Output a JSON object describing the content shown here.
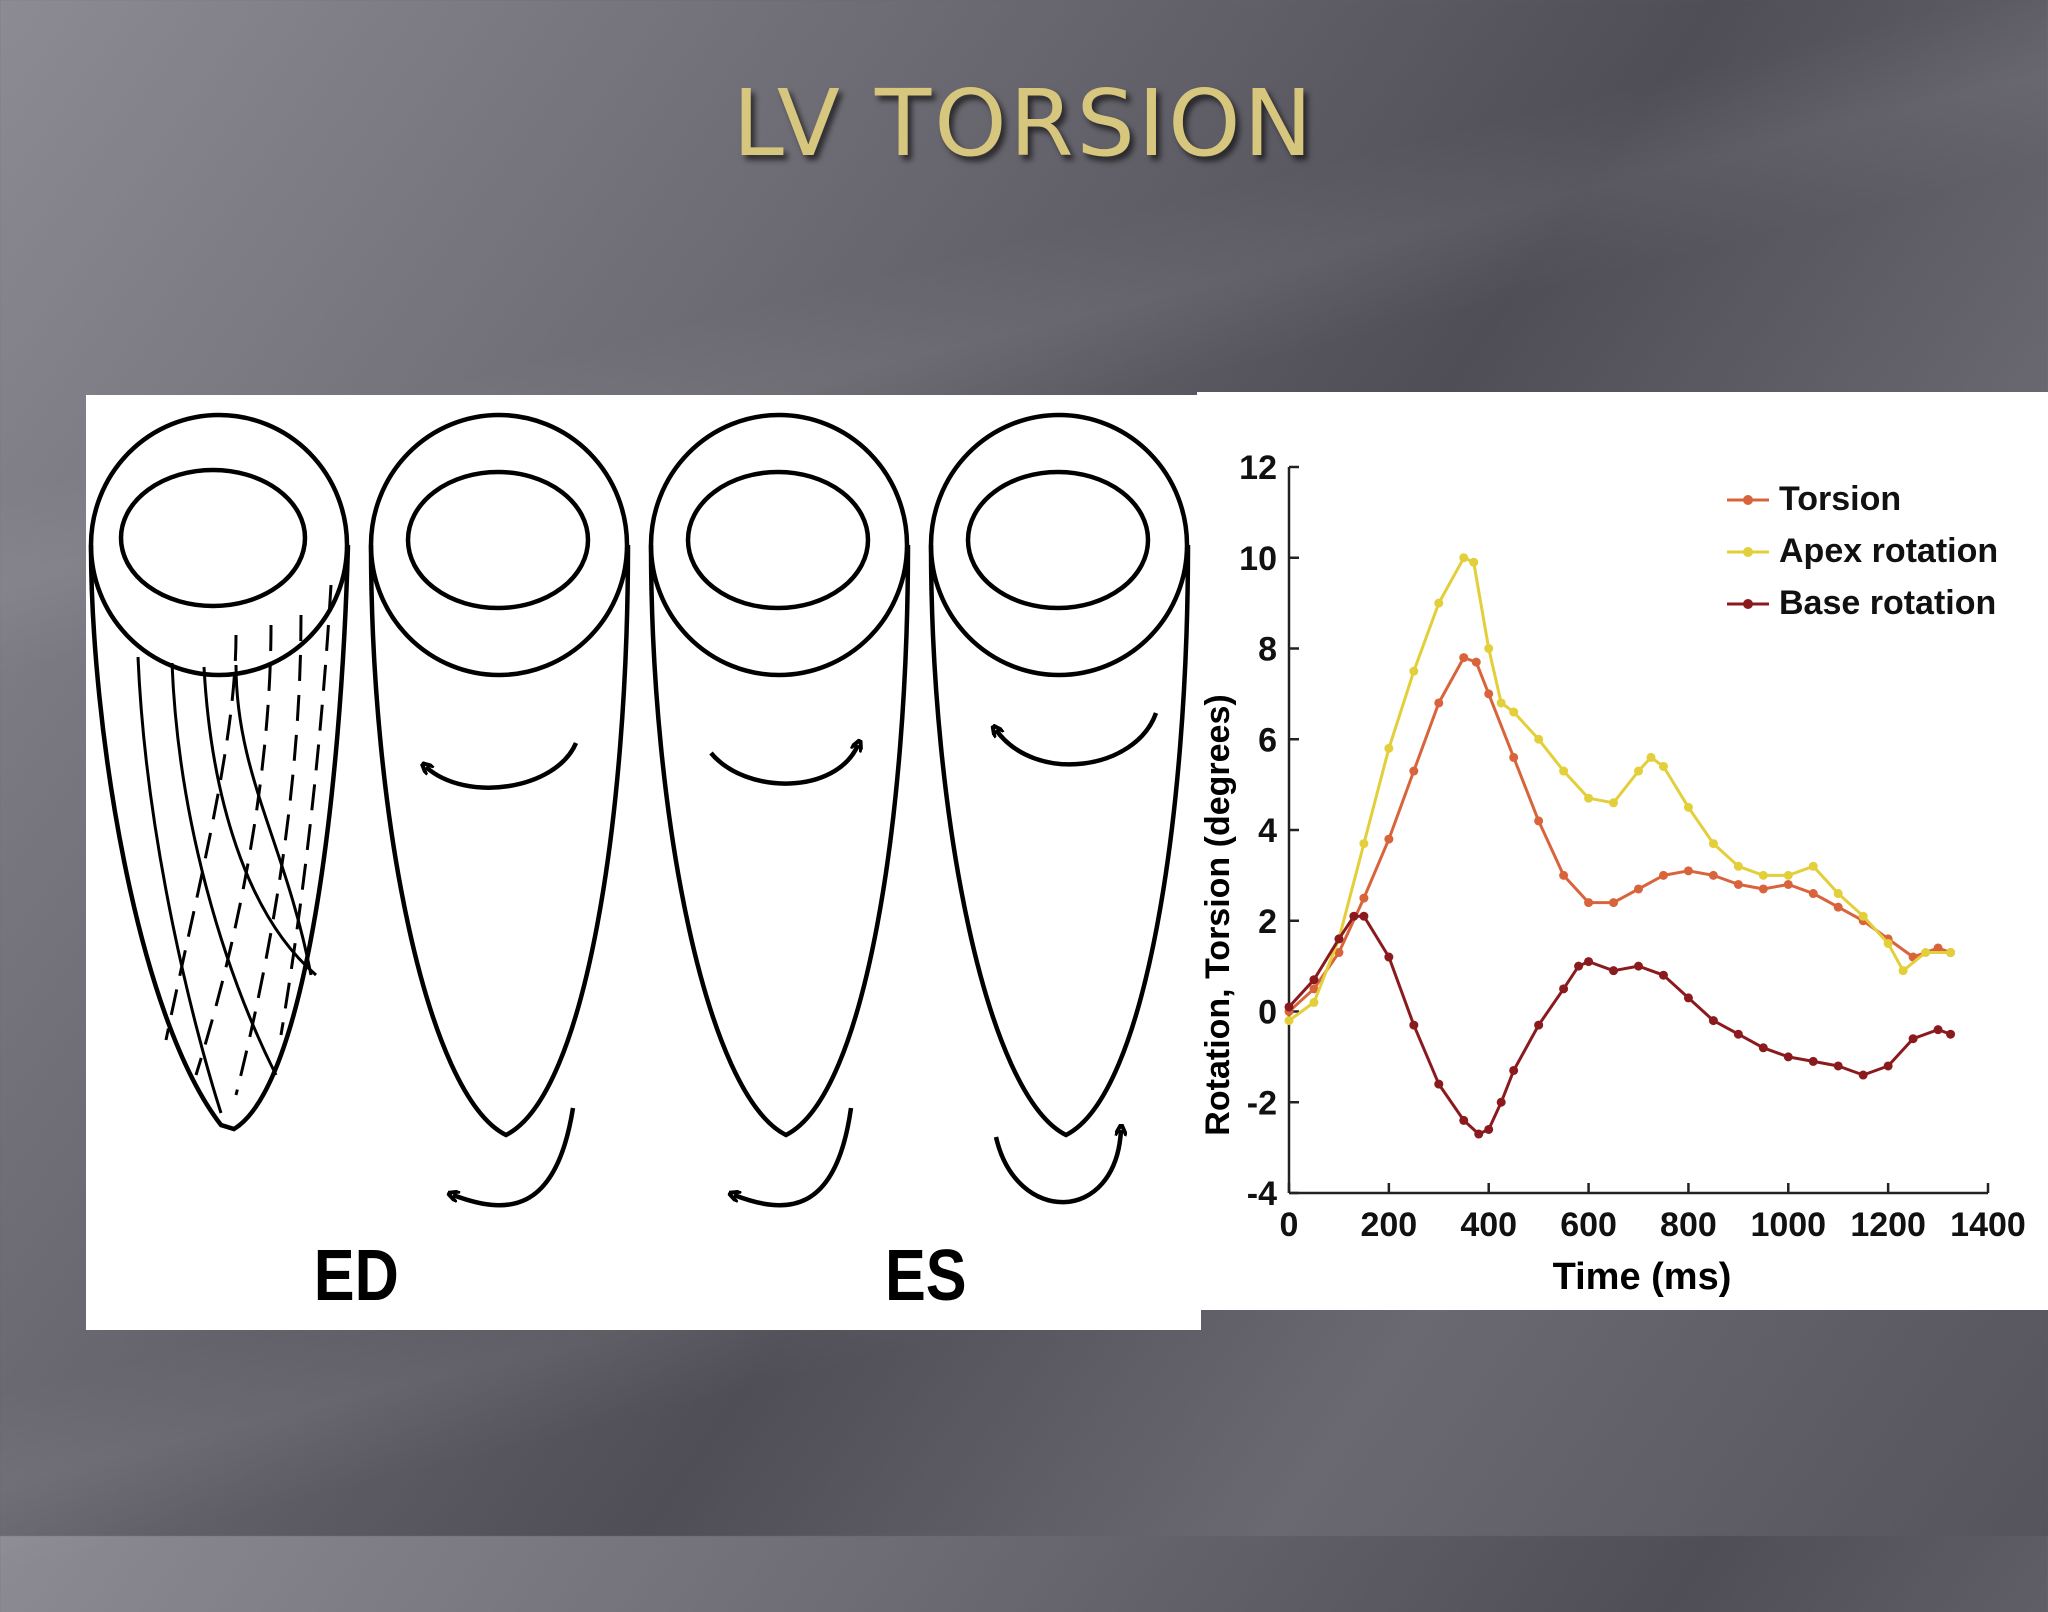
{
  "slide": {
    "title": "LV TORSION"
  },
  "diagram": {
    "label_ed": "ED",
    "label_es": "ES"
  },
  "chart_data": {
    "type": "line",
    "title": "",
    "xlabel": "Time (ms)",
    "ylabel": "Rotation, Torsion (degrees)",
    "xlim": [
      0,
      1400
    ],
    "ylim": [
      -4,
      12
    ],
    "xticks": [
      0,
      200,
      400,
      600,
      800,
      1000,
      1200,
      1400
    ],
    "yticks": [
      -4,
      -2,
      0,
      2,
      4,
      6,
      8,
      10,
      12
    ],
    "legend_position": "top-right",
    "grid": false,
    "series": [
      {
        "name": "Torsion",
        "color": "#d9643c",
        "x": [
          0,
          50,
          100,
          150,
          200,
          250,
          300,
          350,
          375,
          400,
          450,
          500,
          550,
          600,
          650,
          700,
          750,
          800,
          850,
          900,
          950,
          1000,
          1050,
          1100,
          1150,
          1200,
          1250,
          1300,
          1325
        ],
        "y": [
          0,
          0.5,
          1.3,
          2.5,
          3.8,
          5.3,
          6.8,
          7.8,
          7.7,
          7.0,
          5.6,
          4.2,
          3.0,
          2.4,
          2.4,
          2.7,
          3.0,
          3.1,
          3.0,
          2.8,
          2.7,
          2.8,
          2.6,
          2.3,
          2.0,
          1.6,
          1.2,
          1.4,
          1.3
        ]
      },
      {
        "name": "Apex rotation",
        "color": "#e2cf3a",
        "x": [
          0,
          50,
          100,
          150,
          200,
          250,
          300,
          350,
          370,
          400,
          425,
          450,
          500,
          550,
          600,
          650,
          700,
          725,
          750,
          800,
          850,
          900,
          950,
          1000,
          1050,
          1100,
          1150,
          1200,
          1230,
          1275,
          1325
        ],
        "y": [
          -0.2,
          0.2,
          1.6,
          3.7,
          5.8,
          7.5,
          9.0,
          10.0,
          9.9,
          8.0,
          6.8,
          6.6,
          6.0,
          5.3,
          4.7,
          4.6,
          5.3,
          5.6,
          5.4,
          4.5,
          3.7,
          3.2,
          3.0,
          3.0,
          3.2,
          2.6,
          2.1,
          1.5,
          0.9,
          1.3,
          1.3
        ]
      },
      {
        "name": "Base rotation",
        "color": "#8a1a1e",
        "x": [
          0,
          50,
          100,
          130,
          150,
          200,
          250,
          300,
          350,
          380,
          400,
          425,
          450,
          500,
          550,
          580,
          600,
          650,
          700,
          750,
          800,
          850,
          900,
          950,
          1000,
          1050,
          1100,
          1150,
          1200,
          1250,
          1300,
          1325
        ],
        "y": [
          0.1,
          0.7,
          1.6,
          2.1,
          2.1,
          1.2,
          -0.3,
          -1.6,
          -2.4,
          -2.7,
          -2.6,
          -2.0,
          -1.3,
          -0.3,
          0.5,
          1.0,
          1.1,
          0.9,
          1.0,
          0.8,
          0.3,
          -0.2,
          -0.5,
          -0.8,
          -1.0,
          -1.1,
          -1.2,
          -1.4,
          -1.2,
          -0.6,
          -0.4,
          -0.5
        ]
      }
    ]
  }
}
